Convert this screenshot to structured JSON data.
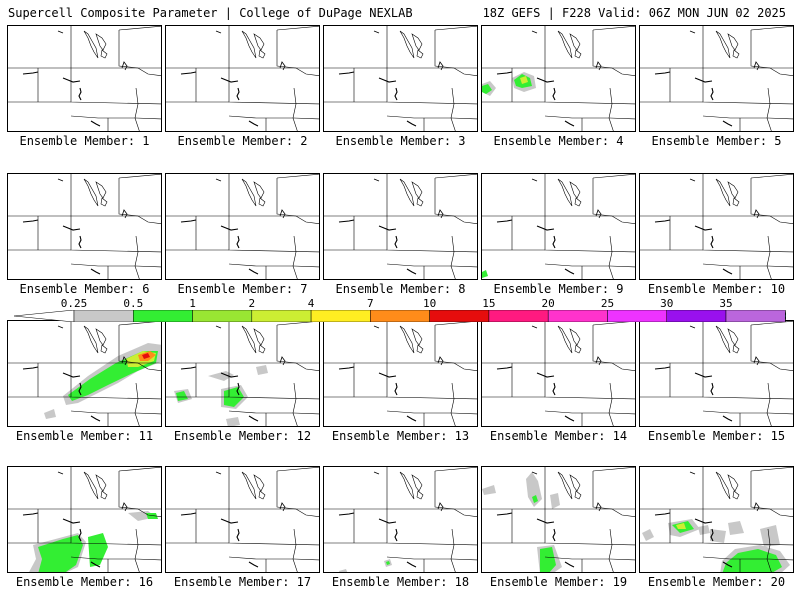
{
  "header": {
    "title": "Supercell Composite Parameter | College of DuPage NEXLAB",
    "run_info": "18Z GEFS | F228 Valid: 06Z MON JUN 02 2025"
  },
  "legend": {
    "labels": [
      "0.25",
      "0.5",
      "1",
      "2",
      "4",
      "7",
      "10",
      "15",
      "20",
      "25",
      "30",
      "35"
    ],
    "colors": [
      "#c8c8c8",
      "#33ee33",
      "#99e633",
      "#ccee33",
      "#ffee22",
      "#ff8c1a",
      "#e60d0d",
      "#ff1a80",
      "#ff33cc",
      "#ee33ff",
      "#9911ee",
      "#bb66dd",
      "#22ddee"
    ]
  },
  "members": [
    {
      "label": "Ensemble Member: 1"
    },
    {
      "label": "Ensemble Member: 2"
    },
    {
      "label": "Ensemble Member: 3"
    },
    {
      "label": "Ensemble Member: 4"
    },
    {
      "label": "Ensemble Member: 5"
    },
    {
      "label": "Ensemble Member: 6"
    },
    {
      "label": "Ensemble Member: 7"
    },
    {
      "label": "Ensemble Member: 8"
    },
    {
      "label": "Ensemble Member: 9"
    },
    {
      "label": "Ensemble Member: 10"
    },
    {
      "label": "Ensemble Member: 11"
    },
    {
      "label": "Ensemble Member: 12"
    },
    {
      "label": "Ensemble Member: 13"
    },
    {
      "label": "Ensemble Member: 14"
    },
    {
      "label": "Ensemble Member: 15"
    },
    {
      "label": "Ensemble Member: 16"
    },
    {
      "label": "Ensemble Member: 17"
    },
    {
      "label": "Ensemble Member: 18"
    },
    {
      "label": "Ensemble Member: 19"
    },
    {
      "label": "Ensemble Member: 20"
    }
  ]
}
